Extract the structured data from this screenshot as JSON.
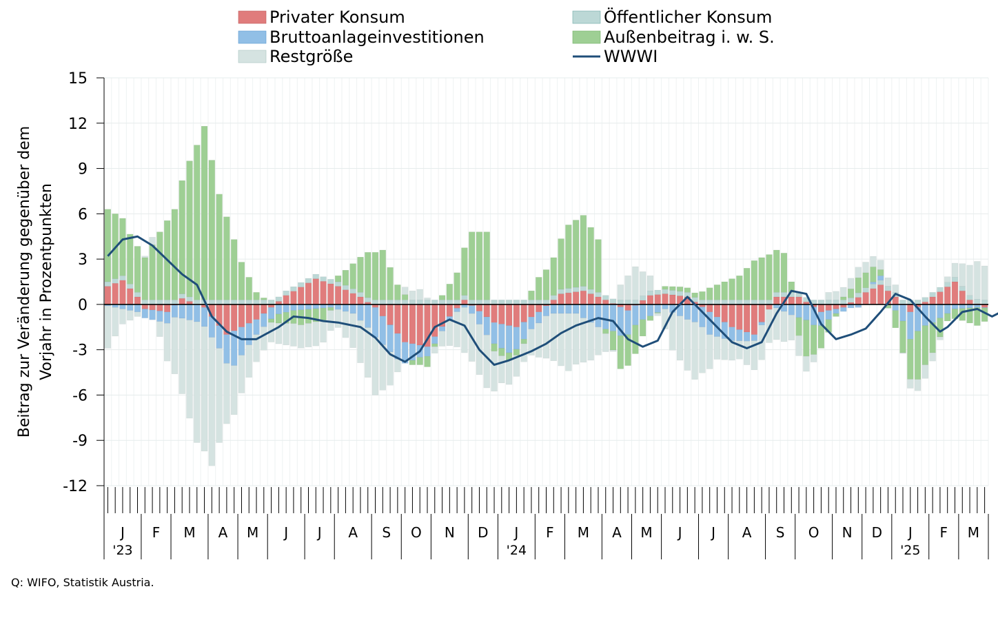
{
  "source_note": "Q: WIFO, Statistik Austria.",
  "chart_data": {
    "type": "bar",
    "stacked": true,
    "ylabel": "Beitrag zur Veränderung gegenüber dem Vorjahr in Prozentpunkten",
    "ylim": [
      -12,
      15
    ],
    "yticks": [
      15,
      12,
      9,
      6,
      3,
      0,
      -3,
      -6,
      -9,
      -12
    ],
    "grid": true,
    "legend_position": "top",
    "month_labels": [
      "J",
      "F",
      "M",
      "A",
      "M",
      "J",
      "J",
      "A",
      "S",
      "O",
      "N",
      "D",
      "J",
      "F",
      "M",
      "A",
      "M",
      "J",
      "J",
      "A",
      "S",
      "O",
      "N",
      "D",
      "J",
      "F",
      "M"
    ],
    "month_weeks": [
      5,
      4,
      5,
      4,
      4,
      5,
      4,
      5,
      4,
      4,
      5,
      4,
      5,
      4,
      5,
      4,
      4,
      5,
      4,
      5,
      4,
      5,
      4,
      4,
      5,
      4,
      4
    ],
    "year_labels": [
      {
        "label": "'23",
        "month_index": 0
      },
      {
        "label": "'24",
        "month_index": 12
      },
      {
        "label": "'25",
        "month_index": 24
      }
    ],
    "colors": {
      "privater": "#e07c7c",
      "oeffentlich": "#bcd8d6",
      "bai": "#91bfe6",
      "aussen": "#9ecf94",
      "rest": "#d5e3e1",
      "wwwi": "#1f4e79"
    },
    "series": [
      {
        "key": "privater",
        "name": "Privater Konsum",
        "keypoints": [
          [
            0,
            1.2
          ],
          [
            2,
            1.6
          ],
          [
            4,
            0.5
          ],
          [
            5,
            -0.3
          ],
          [
            8,
            -0.5
          ],
          [
            10,
            0.4
          ],
          [
            13,
            -0.2
          ],
          [
            16,
            -2
          ],
          [
            20,
            -1
          ],
          [
            24,
            0.6
          ],
          [
            28,
            1.7
          ],
          [
            31,
            1.2
          ],
          [
            34,
            0.5
          ],
          [
            36,
            -0.2
          ],
          [
            40,
            -2.5
          ],
          [
            43,
            -2.8
          ],
          [
            46,
            -0.8
          ],
          [
            48,
            0.3
          ],
          [
            52,
            -1.2
          ],
          [
            55,
            -1.5
          ],
          [
            58,
            -0.5
          ],
          [
            61,
            0.7
          ],
          [
            64,
            0.9
          ],
          [
            67,
            0.3
          ],
          [
            70,
            -0.4
          ],
          [
            73,
            0.6
          ],
          [
            75,
            0.7
          ],
          [
            78,
            0.5
          ],
          [
            81,
            -0.5
          ],
          [
            84,
            -1.5
          ],
          [
            87,
            -2
          ],
          [
            90,
            0.5
          ],
          [
            93,
            0.5
          ],
          [
            96,
            -0.5
          ],
          [
            99,
            -0.2
          ],
          [
            102,
            0.8
          ],
          [
            104,
            1.3
          ],
          [
            106,
            0.5
          ],
          [
            108,
            -0.5
          ],
          [
            111,
            0.5
          ],
          [
            114,
            1.5
          ],
          [
            116,
            0.3
          ],
          [
            118,
            -0.2
          ],
          [
            121,
            0.9
          ],
          [
            124,
            1.2
          ],
          [
            127,
            -0.2
          ],
          [
            130,
            -0.7
          ],
          [
            133,
            -0.5
          ],
          [
            136,
            -0.3
          ]
        ]
      },
      {
        "key": "oeffentlich",
        "name": "Öffentlicher Konsum",
        "keypoints": [
          [
            0,
            0.3
          ],
          [
            136,
            0.3
          ]
        ]
      },
      {
        "key": "bai",
        "name": "Bruttoanlageinvestitionen",
        "keypoints": [
          [
            0,
            -0.1
          ],
          [
            5,
            -0.6
          ],
          [
            9,
            -0.8
          ],
          [
            15,
            -1.5
          ],
          [
            17,
            -2.3
          ],
          [
            20,
            -1
          ],
          [
            25,
            -0.4
          ],
          [
            30,
            -0.2
          ],
          [
            33,
            -0.6
          ],
          [
            36,
            -2
          ],
          [
            39,
            -1.7
          ],
          [
            42,
            -0.8
          ],
          [
            45,
            -0.3
          ],
          [
            48,
            -0.2
          ],
          [
            51,
            -1.2
          ],
          [
            54,
            -1.8
          ],
          [
            57,
            -0.8
          ],
          [
            60,
            -0.6
          ],
          [
            63,
            -0.6
          ],
          [
            66,
            -1.5
          ],
          [
            69,
            -1.9
          ],
          [
            72,
            -1
          ],
          [
            75,
            -0.3
          ],
          [
            78,
            -1
          ],
          [
            81,
            -1.5
          ],
          [
            84,
            -0.9
          ],
          [
            86,
            -0.6
          ],
          [
            89,
            0
          ],
          [
            92,
            -0.7
          ],
          [
            95,
            -1.2
          ],
          [
            98,
            -0.3
          ],
          [
            101,
            -0.2
          ],
          [
            104,
            0.3
          ],
          [
            106,
            -0.4
          ],
          [
            108,
            -1.8
          ],
          [
            111,
            -1.2
          ],
          [
            114,
            -0.3
          ],
          [
            117,
            -0.2
          ],
          [
            120,
            0.3
          ],
          [
            123,
            0.7
          ],
          [
            126,
            -0.1
          ],
          [
            129,
            -0.1
          ],
          [
            132,
            -0.1
          ],
          [
            136,
            0.3
          ]
        ]
      },
      {
        "key": "aussen",
        "name": "Außenbeitrag i. w. S.",
        "keypoints": [
          [
            0,
            4.8
          ],
          [
            3,
            3.3
          ],
          [
            5,
            2.8
          ],
          [
            7,
            4.5
          ],
          [
            9,
            6
          ],
          [
            11,
            9
          ],
          [
            13,
            11.5
          ],
          [
            15,
            7
          ],
          [
            18,
            2.5
          ],
          [
            20,
            0.5
          ],
          [
            23,
            -0.6
          ],
          [
            26,
            -1
          ],
          [
            29,
            -0.8
          ],
          [
            32,
            1
          ],
          [
            35,
            3
          ],
          [
            37,
            3.3
          ],
          [
            39,
            1
          ],
          [
            41,
            -0.3
          ],
          [
            43,
            -0.7
          ],
          [
            45,
            0.3
          ],
          [
            47,
            1.8
          ],
          [
            49,
            4.5
          ],
          [
            51,
            4.5
          ],
          [
            52,
            -0.5
          ],
          [
            54,
            -0.5
          ],
          [
            56,
            -0.3
          ],
          [
            58,
            1.5
          ],
          [
            60,
            2.5
          ],
          [
            62,
            4.2
          ],
          [
            64,
            4.7
          ],
          [
            66,
            3.5
          ],
          [
            67,
            -0.3
          ],
          [
            69,
            -2.2
          ],
          [
            71,
            -1.9
          ],
          [
            73,
            -0.3
          ],
          [
            75,
            0.2
          ],
          [
            77,
            0.3
          ],
          [
            79,
            0.3
          ],
          [
            81,
            0.8
          ],
          [
            83,
            1.2
          ],
          [
            85,
            1.6
          ],
          [
            87,
            2.6
          ],
          [
            89,
            3
          ],
          [
            91,
            2.6
          ],
          [
            93,
            -1.2
          ],
          [
            94,
            -2.4
          ],
          [
            96,
            -1.5
          ],
          [
            98,
            -0.2
          ],
          [
            101,
            1
          ],
          [
            103,
            1
          ],
          [
            105,
            -0.2
          ],
          [
            107,
            -2.1
          ],
          [
            109,
            -3.2
          ],
          [
            111,
            -2
          ],
          [
            113,
            -0.5
          ],
          [
            115,
            -0.8
          ],
          [
            117,
            -1.2
          ],
          [
            119,
            -0.6
          ],
          [
            121,
            -0.2
          ],
          [
            124,
            0
          ],
          [
            126,
            -0.3
          ],
          [
            128,
            -0.8
          ],
          [
            130,
            -1.2
          ],
          [
            133,
            -0.6
          ],
          [
            136,
            -0.4
          ]
        ]
      },
      {
        "key": "rest",
        "name": "Restgröße",
        "keypoints": [
          [
            0,
            -2.8
          ],
          [
            2,
            -1
          ],
          [
            4,
            -0.3
          ],
          [
            6,
            0.5
          ],
          [
            8,
            -2.5
          ],
          [
            10,
            -5
          ],
          [
            12,
            -8
          ],
          [
            14,
            -8.5
          ],
          [
            16,
            -4
          ],
          [
            18,
            -2.5
          ],
          [
            20,
            -1.8
          ],
          [
            22,
            -1.3
          ],
          [
            25,
            -1.5
          ],
          [
            28,
            -1.6
          ],
          [
            31,
            -1.2
          ],
          [
            34,
            -2.8
          ],
          [
            36,
            -3.8
          ],
          [
            38,
            -2.2
          ],
          [
            40,
            0.5
          ],
          [
            42,
            0.7
          ],
          [
            45,
            -1
          ],
          [
            48,
            -3
          ],
          [
            51,
            -3.5
          ],
          [
            53,
            -1.8
          ],
          [
            56,
            -1.2
          ],
          [
            59,
            -2.8
          ],
          [
            62,
            -3.8
          ],
          [
            65,
            -2.5
          ],
          [
            67,
            -1.2
          ],
          [
            69,
            1
          ],
          [
            71,
            2.2
          ],
          [
            73,
            1
          ],
          [
            76,
            -2.5
          ],
          [
            79,
            -3.8
          ],
          [
            82,
            -1.5
          ],
          [
            85,
            -1.2
          ],
          [
            88,
            -2.3
          ],
          [
            91,
            -2
          ],
          [
            94,
            -1
          ],
          [
            97,
            0.5
          ],
          [
            100,
            0.7
          ],
          [
            103,
            0.7
          ],
          [
            106,
            0.5
          ],
          [
            108,
            -0.6
          ],
          [
            110,
            -0.9
          ],
          [
            112,
            -0.2
          ],
          [
            115,
            1.5
          ],
          [
            117,
            2.5
          ],
          [
            119,
            2
          ],
          [
            121,
            0.4
          ],
          [
            124,
            0.5
          ],
          [
            127,
            0.3
          ],
          [
            130,
            0.8
          ],
          [
            133,
            0.6
          ],
          [
            136,
            0.8
          ]
        ]
      }
    ],
    "line_series": {
      "key": "wwwi",
      "name": "WWWI",
      "points": [
        [
          0,
          3.2
        ],
        [
          2,
          4.3
        ],
        [
          4,
          4.5
        ],
        [
          6,
          3.9
        ],
        [
          10,
          2
        ],
        [
          12,
          1.3
        ],
        [
          14,
          -0.8
        ],
        [
          16,
          -1.8
        ],
        [
          18,
          -2.3
        ],
        [
          20,
          -2.3
        ],
        [
          23,
          -1.5
        ],
        [
          25,
          -0.8
        ],
        [
          27,
          -0.9
        ],
        [
          29,
          -1.1
        ],
        [
          31,
          -1.2
        ],
        [
          34,
          -1.5
        ],
        [
          36,
          -2.2
        ],
        [
          38,
          -3.3
        ],
        [
          40,
          -3.8
        ],
        [
          42,
          -3.1
        ],
        [
          44,
          -1.5
        ],
        [
          46,
          -1
        ],
        [
          48,
          -1.4
        ],
        [
          50,
          -3
        ],
        [
          52,
          -4
        ],
        [
          54,
          -3.7
        ],
        [
          57,
          -3.1
        ],
        [
          59,
          -2.6
        ],
        [
          61,
          -1.9
        ],
        [
          63,
          -1.4
        ],
        [
          66,
          -0.9
        ],
        [
          68,
          -1.1
        ],
        [
          70,
          -2.3
        ],
        [
          72,
          -2.8
        ],
        [
          74,
          -2.4
        ],
        [
          76,
          -0.5
        ],
        [
          78,
          0.5
        ],
        [
          80,
          -0.5
        ],
        [
          82,
          -1.5
        ],
        [
          84,
          -2.5
        ],
        [
          86,
          -2.9
        ],
        [
          88,
          -2.5
        ],
        [
          90,
          -0.6
        ],
        [
          92,
          0.9
        ],
        [
          94,
          0.7
        ],
        [
          96,
          -1.3
        ],
        [
          98,
          -2.3
        ],
        [
          100,
          -2
        ],
        [
          102,
          -1.6
        ],
        [
          104,
          -0.5
        ],
        [
          106,
          0.7
        ],
        [
          108,
          0.3
        ],
        [
          110,
          -0.8
        ],
        [
          112,
          -1.8
        ],
        [
          113,
          -1.5
        ],
        [
          115,
          -0.5
        ],
        [
          117,
          -0.3
        ],
        [
          119,
          -0.8
        ],
        [
          121,
          -0.3
        ],
        [
          123,
          0.5
        ],
        [
          125,
          0.8
        ],
        [
          127,
          -0.3
        ],
        [
          129,
          -1
        ],
        [
          131,
          -1.2
        ],
        [
          133,
          -0.8
        ],
        [
          135,
          0
        ],
        [
          136,
          0.3
        ]
      ]
    }
  }
}
